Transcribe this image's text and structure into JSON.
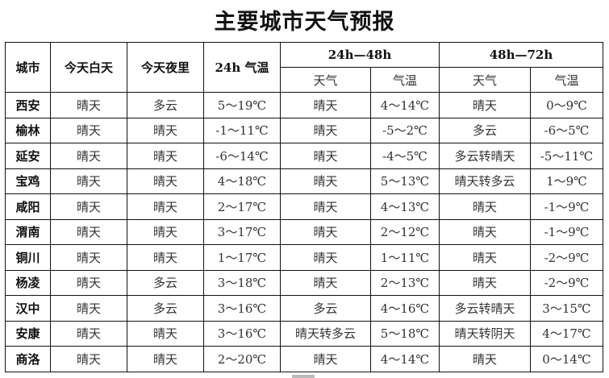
{
  "title": "主要城市天气预报",
  "headers": {
    "city": "城市",
    "day": "今天白天",
    "night": "今天夜里",
    "temp24": "24h 气温",
    "g48": "24h—48h",
    "g72": "48h—72h",
    "weather": "天气",
    "temp": "气温"
  },
  "rows": [
    [
      "西安",
      "晴天",
      "多云",
      "5～19℃",
      "晴天",
      "4～14℃",
      "晴天",
      "0～9℃"
    ],
    [
      "榆林",
      "晴天",
      "晴天",
      "-1～11℃",
      "晴天",
      "-5～2℃",
      "多云",
      "-6～5℃"
    ],
    [
      "延安",
      "晴天",
      "晴天",
      "-6～14℃",
      "晴天",
      "-4～5℃",
      "多云转晴天",
      "-5～11℃"
    ],
    [
      "宝鸡",
      "晴天",
      "晴天",
      "4～18℃",
      "晴天",
      "5～13℃",
      "晴天转多云",
      "1～9℃"
    ],
    [
      "咸阳",
      "晴天",
      "晴天",
      "2～17℃",
      "晴天",
      "4～13℃",
      "晴天",
      "-1～9℃"
    ],
    [
      "渭南",
      "晴天",
      "晴天",
      "3～17℃",
      "晴天",
      "2～12℃",
      "晴天",
      "-1～9℃"
    ],
    [
      "铜川",
      "晴天",
      "晴天",
      "1～17℃",
      "晴天",
      "1～11℃",
      "晴天",
      "-2～9℃"
    ],
    [
      "杨凌",
      "晴天",
      "多云",
      "3～18℃",
      "晴天",
      "2～13℃",
      "晴天",
      "-2～9℃"
    ],
    [
      "汉中",
      "晴天",
      "多云",
      "3～16℃",
      "多云",
      "4～16℃",
      "多云转晴天",
      "3～15℃"
    ],
    [
      "安康",
      "晴天",
      "晴天",
      "3～16℃",
      "晴天转多云",
      "5～18℃",
      "晴天转阴天",
      "4～17℃"
    ],
    [
      "商洛",
      "晴天",
      "晴天",
      "2～20℃",
      "晴天",
      "4～14℃",
      "晴天",
      "0～14℃"
    ]
  ]
}
